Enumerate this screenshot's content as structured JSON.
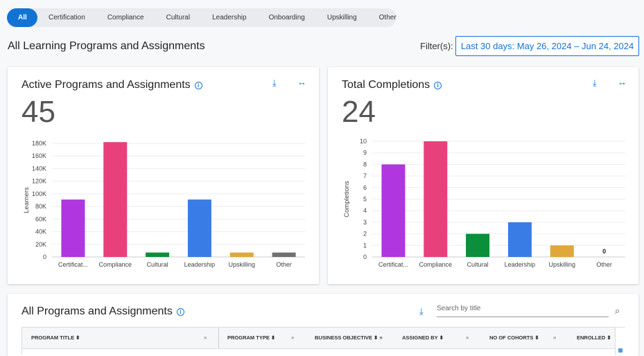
{
  "tabs": [
    "All",
    "Certification",
    "Compliance",
    "Cultural",
    "Leadership",
    "Onboarding",
    "Upskilling",
    "Other"
  ],
  "page_title": "All Learning Programs and Assignments",
  "filter": {
    "label": "Filter(s):",
    "value": "Last 30 days: May 26, 2024 – Jun 24, 2024"
  },
  "accent": "#1273d4",
  "chart_data": [
    {
      "type": "bar",
      "title": "Active Programs and Assignments",
      "total": "45",
      "ylabel": "Learners",
      "ylim": [
        0,
        180000
      ],
      "yticks": [
        "0",
        "20K",
        "40K",
        "60K",
        "80K",
        "100K",
        "120K",
        "140K",
        "160K",
        "180K"
      ],
      "categories": [
        "Certificat...",
        "Compliance",
        "Cultural",
        "Leadership",
        "Upskilling",
        "Other"
      ],
      "values": [
        91000,
        182000,
        7000,
        91000,
        7000,
        7000
      ],
      "colors": [
        "#b036e0",
        "#e8407a",
        "#0a8f3a",
        "#3a7ce6",
        "#e0a83a",
        "#707070"
      ],
      "grid": true
    },
    {
      "type": "bar",
      "title": "Total Completions",
      "total": "24",
      "ylabel": "Completions",
      "ylim": [
        0,
        10
      ],
      "yticks": [
        "0",
        "1",
        "2",
        "3",
        "4",
        "5",
        "6",
        "7",
        "8",
        "9",
        "10"
      ],
      "categories": [
        "Certificat...",
        "Compliance",
        "Cultural",
        "Leadership",
        "Upskilling",
        "Other"
      ],
      "values": [
        8,
        10,
        2,
        3,
        1,
        0
      ],
      "data_labels": {
        "5": "0"
      },
      "colors": [
        "#b036e0",
        "#e8407a",
        "#0a8f3a",
        "#3a7ce6",
        "#e0a83a",
        "#707070"
      ],
      "grid": true
    }
  ],
  "table_card": {
    "title": "All Programs and Assignments",
    "search_placeholder": "Search by title",
    "columns": [
      "PROGRAM TITLE",
      "PROGRAM TYPE",
      "BUSINESS OBJECTIVE",
      "ASSIGNED BY",
      "NO OF COHORTS",
      "ENROLLED"
    ]
  }
}
